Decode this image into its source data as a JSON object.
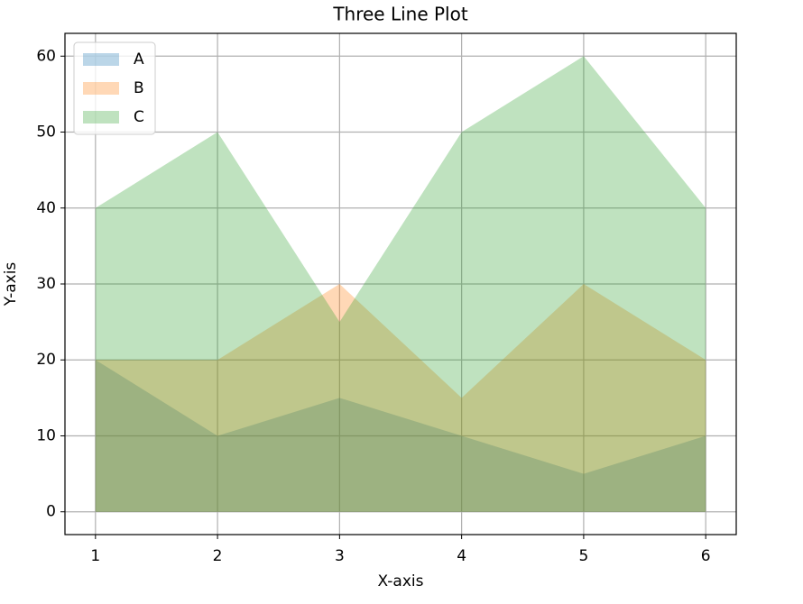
{
  "chart_data": {
    "type": "area",
    "title": "Three Line Plot",
    "x_label": "X-axis",
    "y_label": "Y-axis",
    "x": [
      1,
      2,
      3,
      4,
      5,
      6
    ],
    "series": [
      {
        "name": "A",
        "color": "#1f77b4",
        "values": [
          20,
          10,
          15,
          10,
          5,
          10
        ]
      },
      {
        "name": "B",
        "color": "#ff7f0e",
        "values": [
          20,
          20,
          30,
          15,
          30,
          20
        ]
      },
      {
        "name": "C",
        "color": "#2ca02c",
        "values": [
          40,
          50,
          25,
          50,
          60,
          40
        ]
      }
    ],
    "alpha": 0.3,
    "xlim": [
      0.75,
      6.25
    ],
    "xticks": [
      1,
      2,
      3,
      4,
      5,
      6
    ],
    "ylim": [
      -3,
      63
    ],
    "yticks": [
      0,
      10,
      20,
      30,
      40,
      50,
      60
    ],
    "grid": true,
    "legend": "upper left"
  }
}
